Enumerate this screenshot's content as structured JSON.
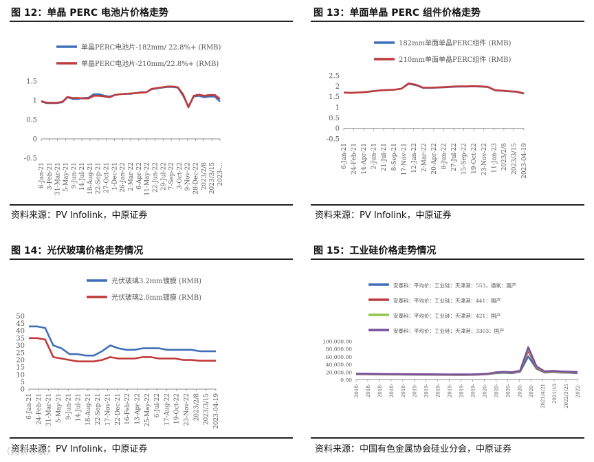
{
  "colors": {
    "blue": "#3f6fb8",
    "red": "#c0393b",
    "green": "#92c44a",
    "purple": "#7a4f9e",
    "axis": "#888888"
  },
  "chart_data": [
    {
      "id": "fig12",
      "type": "line",
      "title": "图 12：单晶 PERC 电池片价格走势",
      "source": "资料来源：PV Infolink，中原证券",
      "ylim": [
        -0.5,
        1.5
      ],
      "yticks": [
        "1.5",
        "1",
        "0.5",
        "0",
        "-0.5"
      ],
      "xticks": [
        "6-Jan-21",
        "3-Feb-21",
        "31-Mar-21",
        "5-May-21",
        "9-Jun-21",
        "14-Jul-21",
        "18-Aug-21",
        "22-Sep-21",
        "27-Oct-21",
        "1-Dec-21",
        "26-Jan-22",
        "2-Mar-22",
        "6-Apr-22",
        "11-May-22",
        "22-Jun-22",
        "29-Jul-22",
        "7-Sep-22",
        "3-Oct-22",
        "9-Nov-22",
        "28-Dec-22",
        "2023/2/8",
        "2023/3/15",
        "2023-..."
      ],
      "series": [
        {
          "name": "单晶PERC电池片-182mm/ 22.8%+ (RMB)",
          "color": "blue",
          "values": [
            0.97,
            0.93,
            0.93,
            0.93,
            0.95,
            1.08,
            1.04,
            1.04,
            1.06,
            1.07,
            1.16,
            1.16,
            1.12,
            1.1,
            1.14,
            1.16,
            1.17,
            1.17,
            1.19,
            1.21,
            1.21,
            1.29,
            1.31,
            1.33,
            1.35,
            1.35,
            1.33,
            1.12,
            0.84,
            1.1,
            1.12,
            1.08,
            1.1,
            1.1,
            0.97
          ]
        },
        {
          "name": "单晶PERC电池片-210mm/22.8%+ (RMB)",
          "color": "red",
          "values": [
            0.98,
            0.94,
            0.94,
            0.94,
            0.96,
            1.09,
            1.06,
            1.06,
            1.05,
            1.05,
            1.12,
            1.12,
            1.1,
            1.08,
            1.14,
            1.16,
            1.17,
            1.18,
            1.19,
            1.2,
            1.21,
            1.3,
            1.32,
            1.34,
            1.36,
            1.36,
            1.34,
            1.15,
            0.82,
            1.12,
            1.15,
            1.12,
            1.14,
            1.14,
            1.04
          ]
        }
      ]
    },
    {
      "id": "fig13",
      "type": "line",
      "title": "图 13：单面单晶 PERC 组件价格走势",
      "source": "资料来源：PV Infolink，中原证券",
      "ylim": [
        -0.5,
        2.5
      ],
      "yticks": [
        "2.5",
        "2",
        "1.5",
        "1",
        "0.5",
        "0",
        "-0.5"
      ],
      "xticks": [
        "6-Jan-21",
        "24-Feb-21",
        "14-Apr-21",
        "2-Jun-21",
        "21-Jul-21",
        "8-Sep-21",
        "17-Nov-21",
        "12-Jan-22",
        "2-Mar-22",
        "20-Apr-22",
        "8-Jun-22",
        "27-Jul-22",
        "15-Sep-22",
        "19-Oct-22",
        "23-Nov-22",
        "11-Jan-23",
        "2023/2/8",
        "2023/3/15",
        "2023-04-19"
      ],
      "series": [
        {
          "name": "182mm单面单晶PERC组件 (RMB)",
          "color": "blue",
          "values": [
            1.7,
            1.68,
            1.7,
            1.72,
            1.76,
            1.8,
            1.82,
            1.83,
            1.88,
            2.11,
            2.05,
            1.92,
            1.92,
            1.93,
            1.95,
            1.97,
            1.98,
            1.98,
            1.99,
            1.98,
            1.96,
            1.8,
            1.78,
            1.75,
            1.73,
            1.65
          ]
        },
        {
          "name": "210mm单面单晶PERC组件 (RMB)",
          "color": "red",
          "values": [
            1.7,
            1.68,
            1.7,
            1.72,
            1.76,
            1.8,
            1.82,
            1.83,
            1.88,
            2.13,
            2.07,
            1.93,
            1.93,
            1.94,
            1.96,
            1.98,
            1.99,
            1.99,
            2.0,
            1.99,
            1.97,
            1.81,
            1.79,
            1.76,
            1.74,
            1.66
          ]
        }
      ]
    },
    {
      "id": "fig14",
      "type": "line",
      "title": "图 14：光伏玻璃价格走势情况",
      "source": "资料来源：PV Infolink，中原证券",
      "ylim": [
        0,
        50
      ],
      "yticks": [
        "50",
        "45",
        "40",
        "35",
        "30",
        "25",
        "20",
        "15",
        "10",
        "5",
        "0"
      ],
      "xticks": [
        "6-Jan-21",
        "24-Feb-21",
        "31-Mar-21",
        "5-May-21",
        "9-Jun-21",
        "14-Jul-21",
        "18-Aug-21",
        "22-Sep-21",
        "17-Nov-21",
        "22-Dec-21",
        "16-Feb-22",
        "13-Apr-22",
        "25-May-22",
        "6-Jul-22",
        "17-Aug-22",
        "19-Oct-22",
        "23-Nov-22",
        "2023/2/8",
        "2023/3/15",
        "2023-04-19"
      ],
      "series": [
        {
          "name": "光伏玻璃3.2mm镀膜 (RMB)",
          "color": "blue",
          "values": [
            43,
            43,
            42,
            30,
            28,
            24,
            24,
            23,
            23,
            26,
            30,
            28,
            27,
            27,
            28,
            28,
            28,
            27,
            27,
            27,
            27,
            26,
            26,
            26
          ]
        },
        {
          "name": "光伏玻璃2.0mm镀膜 (RMB)",
          "color": "red",
          "values": [
            35,
            35,
            34,
            22,
            21,
            20,
            19,
            19,
            19,
            20,
            22,
            21,
            21,
            21,
            22,
            22,
            21,
            21,
            21,
            20,
            20,
            19.5,
            19.5,
            19.5
          ]
        }
      ]
    },
    {
      "id": "fig15",
      "type": "line",
      "title": "图 15：工业硅价格走势情况",
      "source": "资料来源：中国有色金属协会硅业分会，中原证券",
      "ylim": [
        0,
        100000
      ],
      "yticks": [
        "100,000.00",
        "80,000.00",
        "60,000.00",
        "40,000.00",
        "20,000.00",
        "0.00"
      ],
      "xticks": [
        "2018-",
        "2018-",
        "2018-",
        "2018-",
        "2018-",
        "2019-",
        "2019-",
        "2019-",
        "2019-",
        "2019-",
        "2019-",
        "2020-",
        "2020-",
        "2020-",
        "2020-",
        "2020-",
        "2021/4/21",
        "2021/10",
        "2022/3/25",
        "2022-"
      ],
      "series": [
        {
          "name": "安泰科：平均价：工业硅：天津港：553，通氧：国产",
          "color": "blue",
          "values": [
            13500,
            13500,
            13200,
            13000,
            12800,
            12800,
            12600,
            12500,
            12400,
            12300,
            12200,
            12000,
            11800,
            11800,
            12000,
            12500,
            13500,
            16000,
            17500,
            16500,
            20000,
            60000,
            28000,
            18000,
            19500,
            18000,
            17500,
            16500
          ]
        },
        {
          "name": "安泰科：平均价：工业硅：天津港：441：国产",
          "color": "red",
          "values": [
            14000,
            14000,
            13800,
            13500,
            13300,
            13200,
            13000,
            12900,
            12800,
            12700,
            12600,
            12400,
            12200,
            12200,
            12400,
            13000,
            14000,
            17000,
            18500,
            17500,
            21000,
            75000,
            30000,
            19000,
            20500,
            19000,
            18500,
            17500
          ]
        },
        {
          "name": "安泰科：平均价：工业硅：天津港：421：国产",
          "color": "green",
          "values": [
            14500,
            14500,
            14300,
            14000,
            13800,
            13700,
            13500,
            13400,
            13300,
            13200,
            13100,
            12900,
            12700,
            12700,
            12900,
            13500,
            14500,
            17500,
            19000,
            18000,
            22000,
            80000,
            32000,
            20000,
            21500,
            20000,
            19500,
            18500
          ]
        },
        {
          "name": "安泰科：平均价：工业硅：天津港：3303：国产",
          "color": "purple",
          "values": [
            15000,
            15000,
            14800,
            14500,
            14300,
            14200,
            14000,
            13900,
            13800,
            13700,
            13600,
            13400,
            13200,
            13200,
            13400,
            14000,
            15000,
            18500,
            20000,
            19000,
            23000,
            84000,
            34000,
            21000,
            22500,
            21000,
            20500,
            19500
          ]
        }
      ]
    }
  ],
  "watermark": "（光伏导航）"
}
